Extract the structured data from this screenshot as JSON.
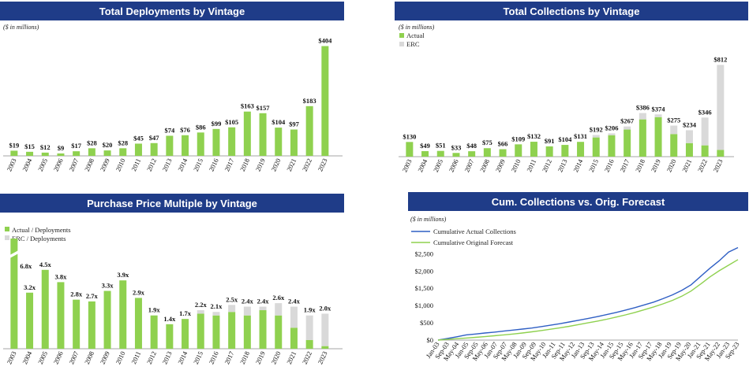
{
  "colors": {
    "banner": "#1f3c88",
    "actual": "#8fd14f",
    "erc": "#d9d9d9",
    "line_actual": "#2f5fc4",
    "line_forecast": "#8fd14f"
  },
  "units_label": "($ in millions)",
  "chart_data": [
    {
      "type": "bar",
      "title": "Total Deployments by Vintage",
      "categories": [
        "2003",
        "2004",
        "2005",
        "2006",
        "2007",
        "2008",
        "2009",
        "2010",
        "2011",
        "2012",
        "2013",
        "2014",
        "2015",
        "2016",
        "2017",
        "2018",
        "2019",
        "2020",
        "2021",
        "2022",
        "2023"
      ],
      "values": [
        19,
        15,
        12,
        9,
        17,
        28,
        20,
        28,
        45,
        47,
        74,
        76,
        86,
        99,
        105,
        163,
        157,
        104,
        97,
        183,
        404
      ],
      "labels": [
        "$19",
        "$15",
        "$12",
        "$9",
        "$17",
        "$28",
        "$20",
        "$28",
        "$45",
        "$47",
        "$74",
        "$76",
        "$86",
        "$99",
        "$105",
        "$163",
        "$157",
        "$104",
        "$97",
        "$183",
        "$404"
      ],
      "ylim": [
        0,
        420
      ]
    },
    {
      "type": "bar",
      "title": "Total Collections by Vintage",
      "legend": [
        "Actual",
        "ERC"
      ],
      "categories": [
        "2003",
        "2004",
        "2005",
        "2006",
        "2007",
        "2008",
        "2009",
        "2010",
        "2011",
        "2012",
        "2013",
        "2014",
        "2015",
        "2016",
        "2017",
        "2018",
        "2019",
        "2020",
        "2021",
        "2022",
        "2023"
      ],
      "series": [
        {
          "name": "Actual",
          "values": [
            130,
            49,
            51,
            33,
            48,
            75,
            66,
            109,
            132,
            91,
            104,
            131,
            170,
            190,
            240,
            330,
            350,
            200,
            120,
            100,
            60
          ]
        },
        {
          "name": "ERC",
          "values": [
            0,
            0,
            0,
            0,
            0,
            0,
            0,
            0,
            0,
            0,
            0,
            0,
            22,
            16,
            27,
            56,
            24,
            75,
            114,
            246,
            752
          ]
        }
      ],
      "labels": [
        "$130",
        "$49",
        "$51",
        "$33",
        "$48",
        "$75",
        "$66",
        "$109",
        "$132",
        "$91",
        "$104",
        "$131",
        "$192",
        "$206",
        "$267",
        "$386",
        "$374",
        "$275",
        "$234",
        "$346",
        "$812"
      ],
      "ylim": [
        0,
        850
      ]
    },
    {
      "type": "bar",
      "title": "Purchase Price Multiple by Vintage",
      "legend": [
        "Actual / Deployments",
        "ERC / Deployments"
      ],
      "categories": [
        "2003",
        "2004",
        "2005",
        "2006",
        "2007",
        "2008",
        "2009",
        "2010",
        "2011",
        "2012",
        "2013",
        "2014",
        "2015",
        "2016",
        "2017",
        "2018",
        "2019",
        "2020",
        "2021",
        "2022",
        "2023"
      ],
      "series": [
        {
          "name": "Actual / Deployments",
          "values": [
            6.8,
            3.2,
            4.5,
            3.8,
            2.8,
            2.7,
            3.3,
            3.9,
            2.9,
            1.9,
            1.4,
            1.7,
            2.0,
            1.9,
            2.1,
            1.9,
            2.2,
            1.9,
            1.2,
            0.5,
            0.15
          ]
        },
        {
          "name": "ERC / Deployments",
          "values": [
            0,
            0,
            0,
            0,
            0,
            0,
            0,
            0,
            0,
            0,
            0,
            0,
            0.2,
            0.2,
            0.4,
            0.5,
            0.2,
            0.7,
            1.2,
            1.4,
            1.85
          ]
        }
      ],
      "labels": [
        "6.8x",
        "3.2x",
        "4.5x",
        "3.8x",
        "2.8x",
        "2.7x",
        "3.3x",
        "3.9x",
        "2.9x",
        "1.9x",
        "1.4x",
        "1.7x",
        "2.2x",
        "2.1x",
        "2.5x",
        "2.4x",
        "2.4x",
        "2.6x",
        "2.4x",
        "1.9x",
        "2.0x"
      ],
      "ylim": [
        0,
        5.3
      ],
      "axis_break": true
    },
    {
      "type": "line",
      "title": "Cum. Collections vs. Orig. Forecast",
      "legend": [
        "Cumulative Actual Collections",
        "Cumulative Original Forecast"
      ],
      "yticks": [
        "$2,500",
        "$2,000",
        "$1,500",
        "$1,000",
        "$500",
        "$0"
      ],
      "ytick_values": [
        2500,
        2000,
        1500,
        1000,
        500,
        0
      ],
      "ylim": [
        0,
        2600
      ],
      "xticks": [
        "Jan-03",
        "Sep-03",
        "May-04",
        "Jan-05",
        "Sep-05",
        "May-06",
        "Jan-07",
        "Sep-07",
        "May-08",
        "Jan-09",
        "Sep-09",
        "May-10",
        "Jan-11",
        "Sep-11",
        "May-12",
        "Jan-13",
        "Sep-13",
        "May-14",
        "Jan-15",
        "Sep-15",
        "May-16",
        "Jan-17",
        "Sep-17",
        "May-18",
        "Jan-19",
        "Sep-19",
        "May-20",
        "Jan-21",
        "Sep-21",
        "May-22",
        "Jan-23",
        "Sep-23"
      ],
      "series": [
        {
          "name": "Cumulative Actual Collections",
          "values": [
            0,
            45,
            95,
            150,
            175,
            205,
            230,
            260,
            290,
            320,
            350,
            390,
            430,
            475,
            525,
            575,
            625,
            680,
            740,
            800,
            870,
            940,
            1020,
            1100,
            1200,
            1310,
            1440,
            1600,
            1840,
            2080,
            2300,
            2550,
            2680
          ]
        },
        {
          "name": "Cumulative Original Forecast",
          "values": [
            0,
            20,
            40,
            60,
            80,
            100,
            125,
            150,
            175,
            205,
            240,
            275,
            315,
            355,
            400,
            450,
            500,
            550,
            605,
            665,
            730,
            800,
            880,
            960,
            1050,
            1150,
            1270,
            1420,
            1620,
            1830,
            2010,
            2170,
            2330
          ]
        }
      ]
    }
  ]
}
